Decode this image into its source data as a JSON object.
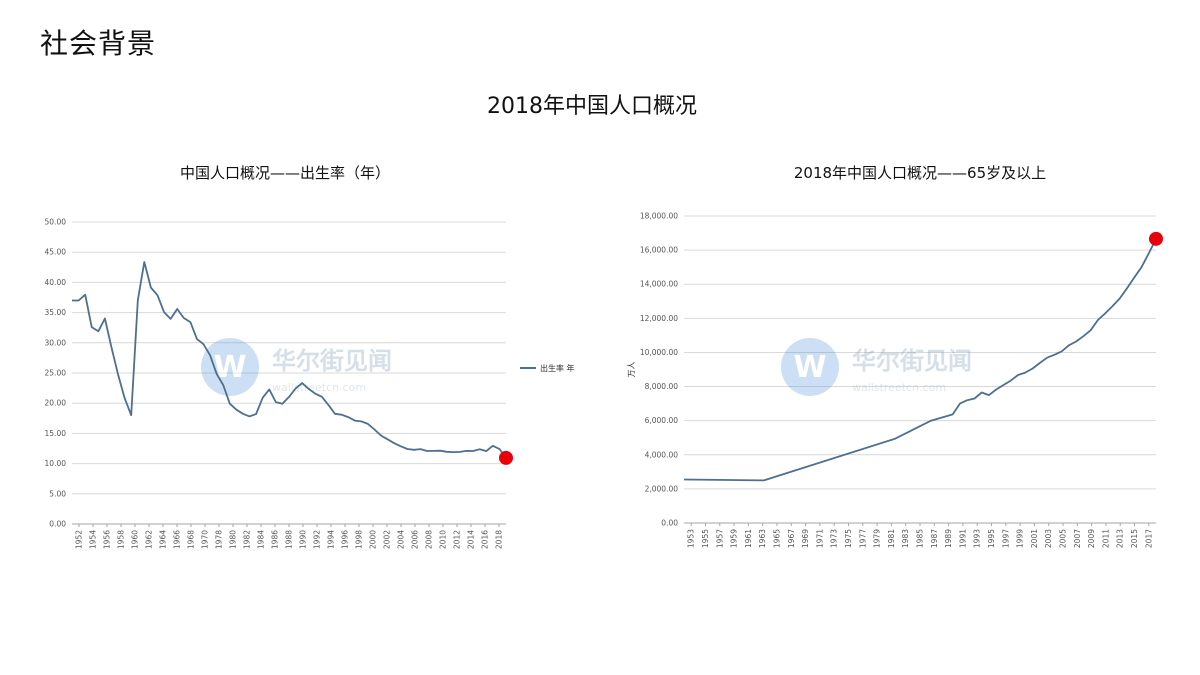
{
  "page": {
    "heading": "社会背景",
    "title": "2018年中国人口概况"
  },
  "watermark": {
    "name": "华尔街见闻",
    "url": "wallstreetcn.com",
    "logo_letter": "W"
  },
  "colors": {
    "line": "#4f6f8f",
    "marker": "#e8000b",
    "grid": "#d9d9d9",
    "axis": "#a6a6a6"
  },
  "chart_data": [
    {
      "type": "line",
      "title": "中国人口概况——出生率（年）",
      "xlabel": "",
      "ylabel": "",
      "ylim": [
        0,
        50
      ],
      "yticks": [
        "0.00",
        "5.00",
        "10.00",
        "15.00",
        "20.00",
        "25.00",
        "30.00",
        "35.00",
        "40.00",
        "45.00",
        "50.00"
      ],
      "x": [
        1952,
        1953,
        1954,
        1955,
        1956,
        1957,
        1958,
        1959,
        1960,
        1961,
        1962,
        1963,
        1964,
        1965,
        1966,
        1967,
        1968,
        1969,
        1970,
        1971,
        1972,
        1973,
        1974,
        1975,
        1976,
        1977,
        1978,
        1979,
        1980,
        1981,
        1982,
        1983,
        1984,
        1985,
        1986,
        1987,
        1988,
        1989,
        1990,
        1991,
        1992,
        1993,
        1994,
        1995,
        1996,
        1997,
        1998,
        1999,
        2000,
        2001,
        2002,
        2003,
        2004,
        2005,
        2006,
        2007,
        2008,
        2009,
        2010,
        2011,
        2012,
        2013,
        2014,
        2015,
        2016,
        2017,
        2018
      ],
      "xticks": [
        "1952",
        "1954",
        "1956",
        "1958",
        "1960",
        "1962",
        "1964",
        "1966",
        "1968",
        "1970",
        "1978",
        "1980",
        "1982",
        "1984",
        "1986",
        "1988",
        "1990",
        "1992",
        "1994",
        "1996",
        "1998",
        "2000",
        "2002",
        "2004",
        "2006",
        "2008",
        "2010",
        "2012",
        "2014",
        "2016",
        "2018"
      ],
      "series": [
        {
          "name": "出生率 年",
          "values": [
            37.0,
            37.0,
            37.97,
            32.6,
            31.9,
            34.03,
            29.22,
            24.78,
            20.86,
            18.02,
            37.01,
            43.37,
            39.14,
            37.88,
            35.05,
            33.96,
            35.59,
            34.11,
            33.43,
            30.65,
            29.77,
            27.93,
            24.82,
            23.01,
            19.91,
            18.93,
            18.25,
            17.82,
            18.21,
            20.91,
            22.28,
            20.19,
            19.9,
            21.04,
            22.43,
            23.33,
            22.37,
            21.58,
            21.06,
            19.68,
            18.24,
            18.09,
            17.7,
            17.12,
            16.98,
            16.57,
            15.64,
            14.64,
            14.03,
            13.38,
            12.86,
            12.41,
            12.29,
            12.4,
            12.09,
            12.1,
            12.14,
            11.95,
            11.9,
            11.93,
            12.1,
            12.08,
            12.37,
            12.07,
            12.95,
            12.43,
            10.94
          ]
        }
      ],
      "highlight": {
        "x": 2018,
        "y": 10.94
      },
      "legend": "right",
      "grid": true
    },
    {
      "type": "line",
      "title": "2018年中国人口概况——65岁及以上",
      "xlabel": "",
      "ylabel": "万人",
      "ylim": [
        0,
        18000
      ],
      "yticks": [
        "0.00",
        "2,000.00",
        "4,000.00",
        "6,000.00",
        "8,000.00",
        "10,000.00",
        "12,000.00",
        "14,000.00",
        "16,000.00",
        "18,000.00"
      ],
      "xticks": [
        "1953",
        "1955",
        "1957",
        "1959",
        "1961",
        "1963",
        "1965",
        "1967",
        "1969",
        "1971",
        "1973",
        "1975",
        "1977",
        "1979",
        "1981",
        "1983",
        "1985",
        "1987",
        "1989",
        "1991",
        "1993",
        "1995",
        "1997",
        "1999",
        "2001",
        "2003",
        "2005",
        "2007",
        "2009",
        "2011",
        "2013",
        "2015",
        "2017"
      ],
      "series": [
        {
          "name": "",
          "points": [
            [
              1953,
              2550
            ],
            [
              1964,
              2500
            ],
            [
              1982,
              4930
            ],
            [
              1987,
              6000
            ],
            [
              1990,
              6370
            ],
            [
              1991,
              7000
            ],
            [
              1992,
              7200
            ],
            [
              1993,
              7300
            ],
            [
              1994,
              7650
            ],
            [
              1995,
              7500
            ],
            [
              1996,
              7830
            ],
            [
              1997,
              8090
            ],
            [
              1998,
              8350
            ],
            [
              1999,
              8680
            ],
            [
              2000,
              8820
            ],
            [
              2001,
              9060
            ],
            [
              2002,
              9380
            ],
            [
              2003,
              9690
            ],
            [
              2004,
              9860
            ],
            [
              2005,
              10060
            ],
            [
              2006,
              10420
            ],
            [
              2007,
              10640
            ],
            [
              2008,
              10950
            ],
            [
              2009,
              11300
            ],
            [
              2010,
              11900
            ],
            [
              2011,
              12290
            ],
            [
              2012,
              12710
            ],
            [
              2013,
              13160
            ],
            [
              2014,
              13760
            ],
            [
              2015,
              14390
            ],
            [
              2016,
              15000
            ],
            [
              2017,
              15800
            ],
            [
              2018,
              16660
            ]
          ]
        }
      ],
      "highlight": {
        "x": 2018,
        "y": 16660
      },
      "grid": true
    }
  ]
}
